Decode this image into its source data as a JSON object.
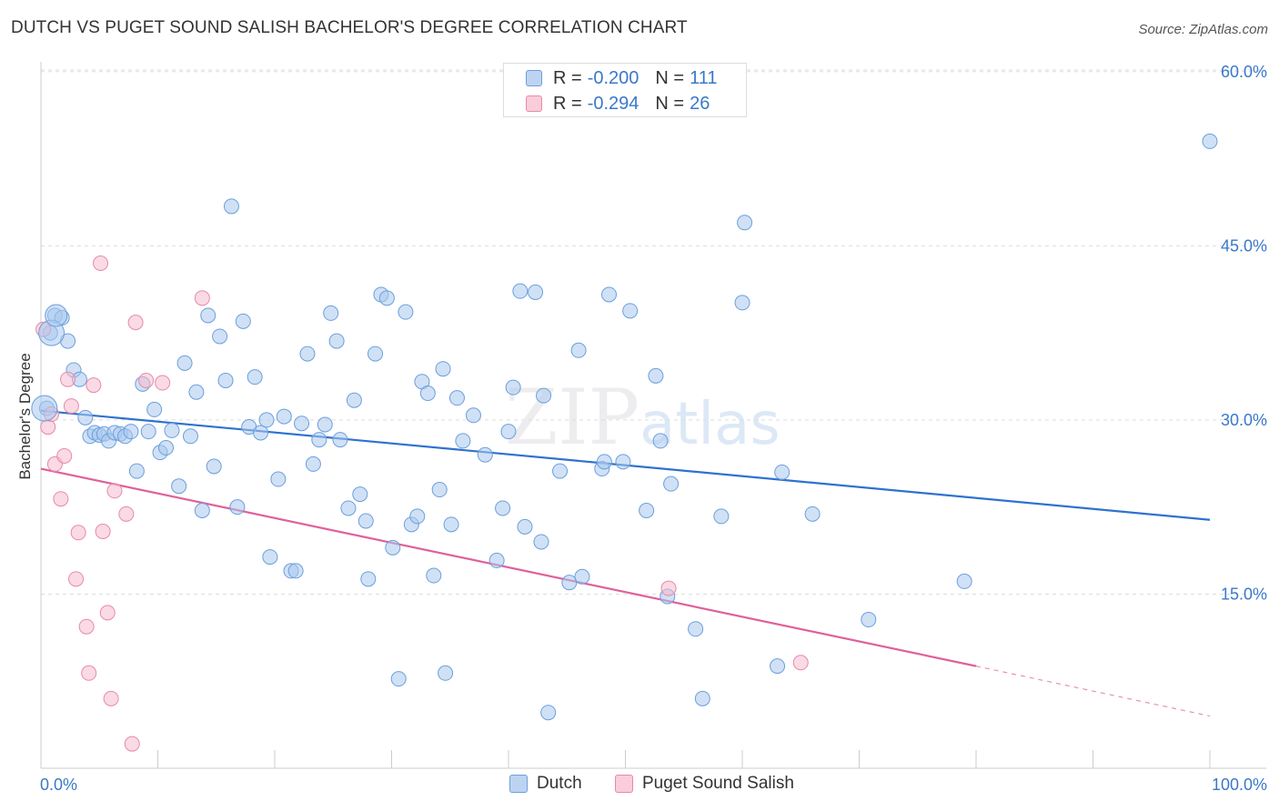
{
  "title": "DUTCH VS PUGET SOUND SALISH BACHELOR'S DEGREE CORRELATION CHART",
  "source": "Source: ZipAtlas.com",
  "watermark": {
    "zip": "ZIP",
    "atlas": "atlas"
  },
  "legend": {
    "rows": [
      {
        "r_label": "R =",
        "r_value": "-0.200",
        "n_label": "N =",
        "n_value": "111"
      },
      {
        "r_label": "R =",
        "r_value": "-0.294",
        "n_label": "N =",
        "n_value": "26"
      }
    ]
  },
  "colors": {
    "dutch_fill": "#a9c8ee",
    "dutch_stroke": "#6b9fdc",
    "dutch_line": "#2e72cf",
    "puget_fill": "#f6bccd",
    "puget_stroke": "#e88aa8",
    "puget_line": "#e0609a",
    "axis_text": "#3a78c9",
    "grid": "#dddddd"
  },
  "chart_data": {
    "type": "scatter",
    "title": "DUTCH VS PUGET SOUND SALISH BACHELOR'S DEGREE CORRELATION CHART",
    "xlabel": "",
    "ylabel": "Bachelor's Degree",
    "xlim": [
      0,
      100
    ],
    "ylim": [
      0,
      65
    ],
    "y_ticks": [
      15,
      30,
      45,
      60
    ],
    "y_tick_labels": [
      "15.0%",
      "30.0%",
      "45.0%",
      "60.0%"
    ],
    "x_tick_labels": [
      "0.0%",
      "100.0%"
    ],
    "grid": true,
    "legend_position": "bottom",
    "series": [
      {
        "name": "Dutch",
        "stats": {
          "R": -0.2,
          "N": 111
        },
        "trend": {
          "x": [
            0,
            100
          ],
          "y": [
            30.8,
            21.4
          ]
        },
        "points": [
          [
            0.5,
            31.0
          ],
          [
            0.8,
            37.5
          ],
          [
            1.2,
            39.0
          ],
          [
            1.8,
            38.8
          ],
          [
            2.3,
            36.8
          ],
          [
            2.8,
            34.3
          ],
          [
            3.3,
            33.5
          ],
          [
            3.8,
            30.2
          ],
          [
            4.2,
            28.6
          ],
          [
            4.6,
            28.9
          ],
          [
            5.0,
            28.7
          ],
          [
            5.4,
            28.8
          ],
          [
            5.8,
            28.2
          ],
          [
            6.3,
            28.9
          ],
          [
            6.8,
            28.8
          ],
          [
            7.2,
            28.6
          ],
          [
            7.7,
            29.0
          ],
          [
            8.2,
            25.6
          ],
          [
            8.7,
            33.1
          ],
          [
            9.2,
            29.0
          ],
          [
            9.7,
            30.9
          ],
          [
            10.2,
            27.2
          ],
          [
            10.7,
            27.6
          ],
          [
            11.2,
            29.1
          ],
          [
            11.8,
            24.3
          ],
          [
            12.3,
            34.9
          ],
          [
            12.8,
            28.6
          ],
          [
            13.3,
            32.4
          ],
          [
            13.8,
            22.2
          ],
          [
            14.3,
            39.0
          ],
          [
            14.8,
            26.0
          ],
          [
            15.3,
            37.2
          ],
          [
            15.8,
            33.4
          ],
          [
            16.3,
            48.4
          ],
          [
            16.8,
            22.5
          ],
          [
            17.3,
            38.5
          ],
          [
            17.8,
            29.4
          ],
          [
            18.3,
            33.7
          ],
          [
            18.8,
            28.9
          ],
          [
            19.3,
            30.0
          ],
          [
            19.6,
            18.2
          ],
          [
            20.3,
            24.9
          ],
          [
            20.8,
            30.3
          ],
          [
            21.4,
            17.0
          ],
          [
            21.8,
            17.0
          ],
          [
            22.3,
            29.7
          ],
          [
            22.8,
            35.7
          ],
          [
            23.3,
            26.2
          ],
          [
            23.8,
            28.3
          ],
          [
            24.3,
            29.6
          ],
          [
            24.8,
            39.2
          ],
          [
            25.3,
            36.8
          ],
          [
            25.6,
            28.3
          ],
          [
            26.3,
            22.4
          ],
          [
            26.8,
            31.7
          ],
          [
            27.3,
            23.6
          ],
          [
            27.8,
            21.3
          ],
          [
            28.0,
            16.3
          ],
          [
            28.6,
            35.7
          ],
          [
            29.1,
            40.8
          ],
          [
            29.6,
            40.5
          ],
          [
            30.1,
            19.0
          ],
          [
            30.6,
            7.7
          ],
          [
            31.2,
            39.3
          ],
          [
            31.7,
            21.0
          ],
          [
            32.2,
            21.7
          ],
          [
            32.6,
            33.3
          ],
          [
            33.1,
            32.3
          ],
          [
            33.6,
            16.6
          ],
          [
            34.1,
            24.0
          ],
          [
            34.4,
            34.4
          ],
          [
            34.6,
            8.2
          ],
          [
            35.1,
            21.0
          ],
          [
            35.6,
            31.9
          ],
          [
            36.1,
            28.2
          ],
          [
            37.0,
            30.4
          ],
          [
            38.0,
            27.0
          ],
          [
            39.0,
            17.9
          ],
          [
            39.5,
            22.4
          ],
          [
            40.0,
            29.0
          ],
          [
            40.4,
            32.8
          ],
          [
            41.0,
            41.1
          ],
          [
            41.4,
            20.8
          ],
          [
            42.3,
            41.0
          ],
          [
            42.8,
            19.5
          ],
          [
            43.0,
            32.1
          ],
          [
            43.4,
            4.8
          ],
          [
            44.4,
            25.6
          ],
          [
            45.2,
            16.0
          ],
          [
            46.0,
            36.0
          ],
          [
            46.3,
            16.5
          ],
          [
            48.0,
            25.8
          ],
          [
            48.2,
            26.4
          ],
          [
            48.6,
            40.8
          ],
          [
            49.8,
            26.4
          ],
          [
            50.4,
            39.4
          ],
          [
            51.8,
            22.2
          ],
          [
            52.6,
            33.8
          ],
          [
            53.0,
            28.2
          ],
          [
            53.6,
            14.8
          ],
          [
            53.9,
            24.5
          ],
          [
            56.0,
            12.0
          ],
          [
            56.6,
            6.0
          ],
          [
            58.2,
            21.7
          ],
          [
            60.0,
            40.1
          ],
          [
            60.2,
            47.0
          ],
          [
            63.0,
            8.8
          ],
          [
            63.4,
            25.5
          ],
          [
            66.0,
            21.9
          ],
          [
            70.8,
            12.8
          ],
          [
            79.0,
            16.1
          ],
          [
            100.0,
            54.0
          ]
        ]
      },
      {
        "name": "Puget Sound Salish",
        "stats": {
          "R": -0.294,
          "N": 26
        },
        "trend": {
          "x": [
            0,
            80
          ],
          "y": [
            25.8,
            8.8
          ]
        },
        "trend_dashed": {
          "x": [
            80,
            100
          ],
          "y": [
            8.8,
            4.5
          ]
        },
        "points": [
          [
            0.2,
            37.8
          ],
          [
            0.6,
            29.4
          ],
          [
            0.9,
            30.5
          ],
          [
            1.2,
            26.2
          ],
          [
            1.7,
            23.2
          ],
          [
            2.0,
            26.9
          ],
          [
            2.3,
            33.5
          ],
          [
            2.6,
            31.2
          ],
          [
            3.0,
            16.3
          ],
          [
            3.2,
            20.3
          ],
          [
            3.9,
            12.2
          ],
          [
            4.1,
            8.2
          ],
          [
            4.5,
            33.0
          ],
          [
            5.3,
            20.4
          ],
          [
            5.7,
            13.4
          ],
          [
            6.0,
            6.0
          ],
          [
            6.3,
            23.9
          ],
          [
            7.3,
            21.9
          ],
          [
            7.8,
            2.1
          ],
          [
            8.1,
            38.4
          ],
          [
            9.0,
            33.4
          ],
          [
            10.4,
            33.2
          ],
          [
            5.1,
            43.5
          ],
          [
            13.8,
            40.5
          ],
          [
            53.7,
            15.5
          ],
          [
            65.0,
            9.1
          ]
        ]
      }
    ]
  }
}
